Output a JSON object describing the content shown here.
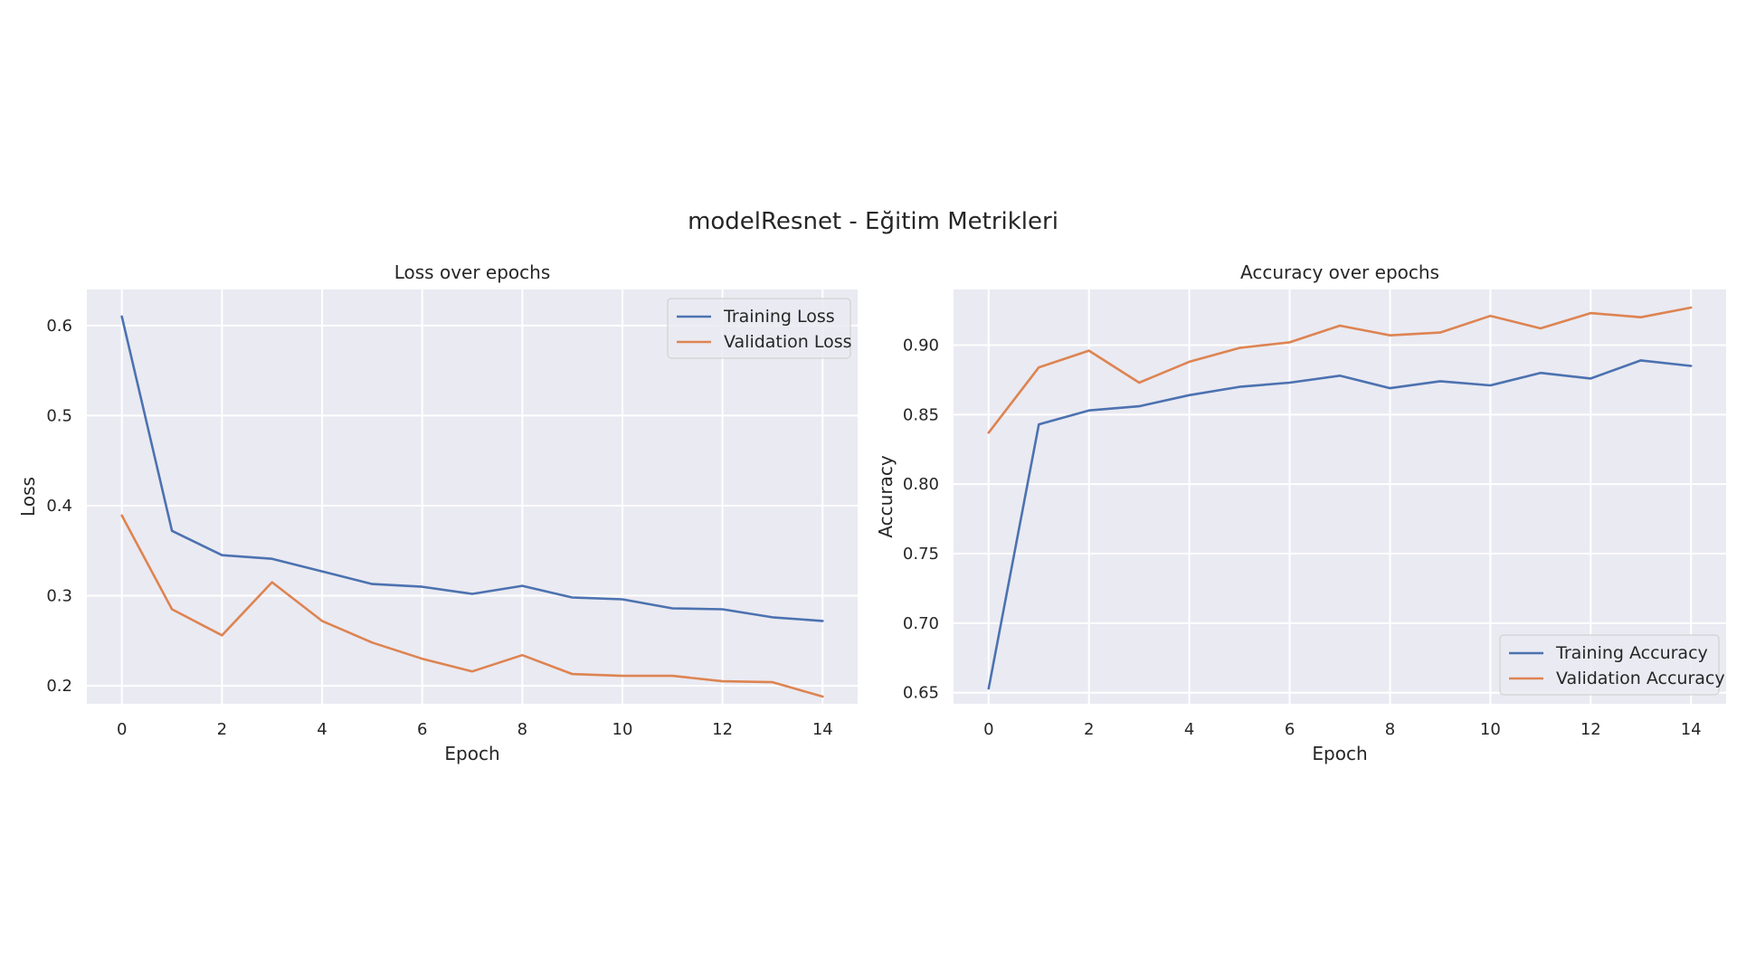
{
  "figure": {
    "suptitle": "modelResnet - Eğitim Metrikleri"
  },
  "chart_data": [
    {
      "type": "line",
      "title": "Loss over epochs",
      "xlabel": "Epoch",
      "ylabel": "Loss",
      "xlim": [
        -0.7,
        14.7
      ],
      "ylim": [
        0.18,
        0.64
      ],
      "xticks": [
        0,
        2,
        4,
        6,
        8,
        10,
        12,
        14
      ],
      "yticks": [
        0.2,
        0.3,
        0.4,
        0.5,
        0.6
      ],
      "ytick_labels": [
        "0.2",
        "0.3",
        "0.4",
        "0.5",
        "0.6"
      ],
      "grid": true,
      "legend": "top-right",
      "x": [
        0,
        1,
        2,
        3,
        4,
        5,
        6,
        7,
        8,
        9,
        10,
        11,
        12,
        13,
        14
      ],
      "series": [
        {
          "name": "Training Loss",
          "color": "#4c72b0",
          "values": [
            0.61,
            0.372,
            0.345,
            0.341,
            0.327,
            0.313,
            0.31,
            0.302,
            0.311,
            0.298,
            0.296,
            0.286,
            0.285,
            0.276,
            0.272
          ]
        },
        {
          "name": "Validation Loss",
          "color": "#dd8452",
          "values": [
            0.389,
            0.285,
            0.256,
            0.315,
            0.272,
            0.248,
            0.23,
            0.216,
            0.234,
            0.213,
            0.211,
            0.211,
            0.205,
            0.204,
            0.188
          ]
        }
      ]
    },
    {
      "type": "line",
      "title": "Accuracy over epochs",
      "xlabel": "Epoch",
      "ylabel": "Accuracy",
      "xlim": [
        -0.7,
        14.7
      ],
      "ylim": [
        0.642,
        0.94
      ],
      "xticks": [
        0,
        2,
        4,
        6,
        8,
        10,
        12,
        14
      ],
      "yticks": [
        0.65,
        0.7,
        0.75,
        0.8,
        0.85,
        0.9
      ],
      "ytick_labels": [
        "0.65",
        "0.70",
        "0.75",
        "0.80",
        "0.85",
        "0.90"
      ],
      "grid": true,
      "legend": "bottom-right",
      "x": [
        0,
        1,
        2,
        3,
        4,
        5,
        6,
        7,
        8,
        9,
        10,
        11,
        12,
        13,
        14
      ],
      "series": [
        {
          "name": "Training Accuracy",
          "color": "#4c72b0",
          "values": [
            0.653,
            0.843,
            0.853,
            0.856,
            0.864,
            0.87,
            0.873,
            0.878,
            0.869,
            0.874,
            0.871,
            0.88,
            0.876,
            0.889,
            0.885
          ]
        },
        {
          "name": "Validation Accuracy",
          "color": "#dd8452",
          "values": [
            0.837,
            0.884,
            0.896,
            0.873,
            0.888,
            0.898,
            0.902,
            0.914,
            0.907,
            0.909,
            0.921,
            0.912,
            0.923,
            0.92,
            0.927
          ]
        }
      ]
    }
  ]
}
